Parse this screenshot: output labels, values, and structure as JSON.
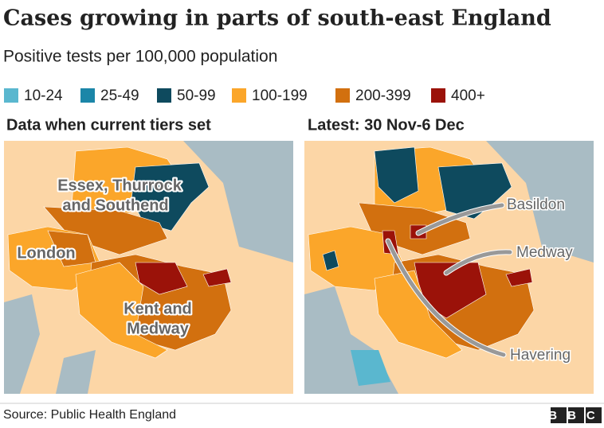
{
  "header": {
    "title": "Cases growing in parts of south-east England",
    "subtitle": "Positive tests per 100,000 population"
  },
  "legend": {
    "items": [
      {
        "label": "10-24",
        "color": "#5ab7cf"
      },
      {
        "label": "25-49",
        "color": "#1b86a8"
      },
      {
        "label": "50-99",
        "color": "#0e4a5e"
      },
      {
        "label": "100-199",
        "color": "#fba62a"
      },
      {
        "label": "200-399",
        "color": "#d2700f"
      },
      {
        "label": "400+",
        "color": "#9b1209"
      }
    ]
  },
  "panels": [
    {
      "title": "Data when current tiers set",
      "labels": [
        {
          "lines": [
            "Essex, Thurrock",
            "and Southend"
          ]
        },
        {
          "lines": [
            "London"
          ]
        },
        {
          "lines": [
            "Kent and",
            "Medway"
          ]
        }
      ]
    },
    {
      "title": "Latest: 30 Nov-6 Dec",
      "annotations": [
        "Basildon",
        "Medway",
        "Havering"
      ]
    }
  ],
  "footer": {
    "source": "Source: Public Health England",
    "logo": "BBC"
  }
}
